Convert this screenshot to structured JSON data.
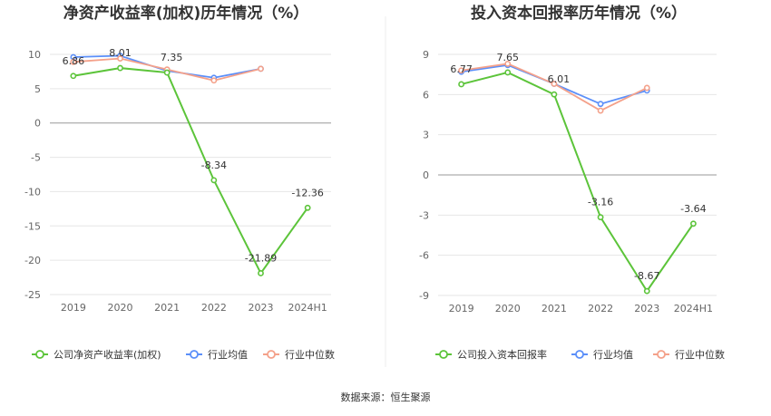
{
  "colors": {
    "company": "#5cc43a",
    "avg": "#5b8ff9",
    "median": "#f4a18a",
    "grid": "#e6e6e6",
    "axis": "#999999"
  },
  "footer": {
    "source": "数据来源：恒生聚源"
  },
  "chart_data": [
    {
      "type": "line",
      "title": "净资产收益率(加权)历年情况（%）",
      "categories": [
        "2019",
        "2020",
        "2021",
        "2022",
        "2023",
        "2024H1"
      ],
      "ylim": [
        -25,
        10
      ],
      "yticks": [
        10,
        5,
        0,
        -5,
        -10,
        -15,
        -20,
        -25
      ],
      "legend_position": "bottom-left",
      "series": [
        {
          "name": "公司净资产收益率(加权)",
          "values": [
            6.86,
            8.01,
            7.35,
            -8.34,
            -21.89,
            -12.36
          ],
          "labels": [
            "6.86",
            "8.01",
            "7.35",
            "-8.34",
            "-21.89",
            "-12.36"
          ]
        },
        {
          "name": "行业均值",
          "values": [
            9.6,
            9.8,
            7.6,
            6.6,
            7.9,
            null
          ]
        },
        {
          "name": "行业中位数",
          "values": [
            8.9,
            9.4,
            7.8,
            6.2,
            7.9,
            null
          ]
        }
      ]
    },
    {
      "type": "line",
      "title": "投入资本回报率历年情况（%）",
      "categories": [
        "2019",
        "2020",
        "2021",
        "2022",
        "2023",
        "2024H1"
      ],
      "ylim": [
        -9,
        9
      ],
      "yticks": [
        9,
        6,
        3,
        0,
        -3,
        -6,
        -9
      ],
      "legend_position": "bottom-left",
      "series": [
        {
          "name": "公司投入资本回报率",
          "values": [
            6.77,
            7.65,
            6.01,
            -3.16,
            -8.67,
            -3.64
          ],
          "labels": [
            "6.77",
            "7.65",
            "6.01",
            "-3.16",
            "-8.67",
            "-3.64"
          ]
        },
        {
          "name": "行业均值",
          "values": [
            7.7,
            8.2,
            6.8,
            5.3,
            6.3,
            null
          ]
        },
        {
          "name": "行业中位数",
          "values": [
            7.8,
            8.3,
            6.8,
            4.8,
            6.5,
            null
          ]
        }
      ]
    }
  ]
}
